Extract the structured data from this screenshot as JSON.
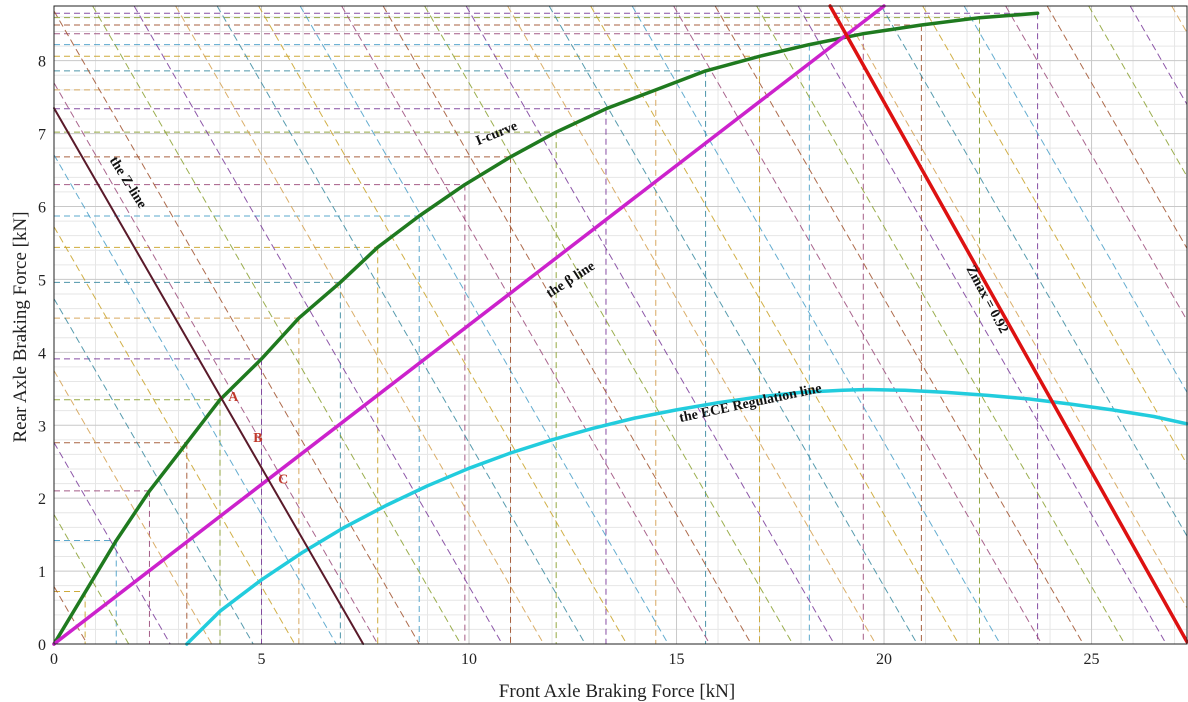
{
  "chart_data": {
    "type": "line",
    "title": "",
    "xlabel": "Front Axle Braking Force [kN]",
    "ylabel": "Rear Axle Braking Force [kN]",
    "xlim": [
      0,
      27.3
    ],
    "ylim": [
      0,
      8.75
    ],
    "xticks": [
      0,
      5,
      10,
      15,
      20,
      25
    ],
    "yticks": [
      0,
      1,
      2,
      3,
      4,
      5,
      6,
      7,
      8
    ],
    "grid": true,
    "series": [
      {
        "name": "I-curve",
        "color": "#1f7a1f",
        "x": [
          0,
          1.5,
          2.3,
          3.2,
          4.0,
          5.0,
          5.9,
          6.9,
          7.8,
          8.8,
          9.9,
          11.0,
          12.1,
          13.3,
          14.5,
          15.7,
          17.0,
          18.2,
          19.5,
          20.9,
          22.3,
          23.7
        ],
        "y": [
          0,
          1.42,
          2.1,
          2.76,
          3.35,
          3.91,
          4.47,
          4.96,
          5.44,
          5.87,
          6.3,
          6.68,
          7.02,
          7.34,
          7.6,
          7.86,
          8.06,
          8.22,
          8.37,
          8.49,
          8.59,
          8.65
        ]
      },
      {
        "name": "the β line",
        "color": "#cc22cc",
        "x": [
          0,
          20.0
        ],
        "y": [
          0,
          8.75
        ]
      },
      {
        "name": "the ECE Regulation line",
        "color": "#22ccdd",
        "x": [
          3.2,
          4.0,
          5.0,
          6.0,
          7.0,
          8.0,
          9.0,
          10.0,
          11.0,
          12.0,
          13.0,
          14.0,
          15.0,
          16.0,
          17.0,
          18.0,
          19.0,
          19.6,
          20.5,
          21.5,
          22.5,
          23.5,
          24.5,
          25.5,
          26.5,
          27.3
        ],
        "y": [
          0.0,
          0.45,
          0.88,
          1.26,
          1.6,
          1.9,
          2.17,
          2.41,
          2.62,
          2.8,
          2.96,
          3.1,
          3.21,
          3.31,
          3.39,
          3.45,
          3.48,
          3.49,
          3.48,
          3.45,
          3.41,
          3.36,
          3.29,
          3.21,
          3.12,
          3.02
        ]
      },
      {
        "name": "the Z-line",
        "color": "#5a1a2a",
        "x": [
          0,
          7.45
        ],
        "y": [
          7.35,
          0
        ]
      },
      {
        "name": "Zmax = 0.92",
        "color": "#dd1111",
        "x": [
          18.7,
          27.3
        ],
        "y": [
          8.75,
          0.03
        ]
      }
    ],
    "annotations": [
      {
        "text": "I-curve",
        "x": 10.7,
        "y": 6.95
      },
      {
        "text": "the β line",
        "x": 12.5,
        "y": 4.95
      },
      {
        "text": "the ECE Regulation line",
        "x": 16.8,
        "y": 3.25
      },
      {
        "text": "the Z-line",
        "x": 1.7,
        "y": 6.3
      },
      {
        "text": "Zmax = 0.92",
        "x": 22.4,
        "y": 4.7
      },
      {
        "text": "A",
        "x": 4.2,
        "y": 3.33
      },
      {
        "text": "B",
        "x": 4.8,
        "y": 2.77
      },
      {
        "text": "C",
        "x": 5.4,
        "y": 2.2
      }
    ],
    "i_curve_points": {
      "x": [
        0.75,
        1.5,
        2.3,
        3.2,
        4.0,
        5.0,
        5.9,
        6.9,
        7.8,
        8.8,
        9.9,
        11.0,
        12.1,
        13.3,
        14.5,
        15.7,
        17.0,
        18.2,
        19.5,
        20.9,
        22.3,
        23.7
      ],
      "y": [
        0.72,
        1.42,
        2.1,
        2.76,
        3.35,
        3.91,
        4.47,
        4.96,
        5.44,
        5.87,
        6.3,
        6.68,
        7.02,
        7.34,
        7.6,
        7.86,
        8.06,
        8.22,
        8.37,
        8.49,
        8.59,
        8.65
      ]
    },
    "constant_decel_line_colors": [
      "#c9a227",
      "#4a9fc8",
      "#9b4a7a",
      "#a0522d",
      "#8aa030",
      "#7a3a9a",
      "#d4a050",
      "#3a8aa0"
    ]
  }
}
